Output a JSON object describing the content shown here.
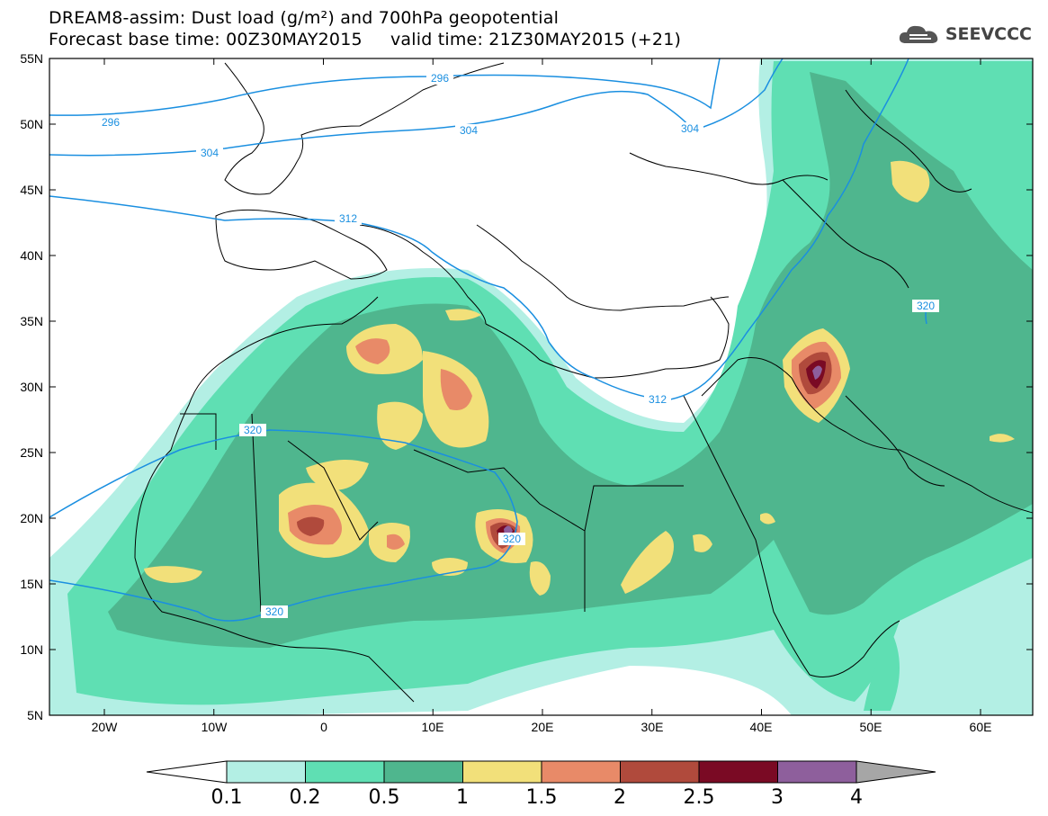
{
  "header": {
    "title_line1": "DREAM8-assim: Dust load (g/m²) and 700hPa geopotential",
    "title_line2": "Forecast base time: 00Z30MAY2015     valid time: 21Z30MAY2015 (+21)",
    "brand": "SEEVCCC",
    "brand_icon": "cloud-logo-icon"
  },
  "map": {
    "lat_labels": [
      "55N",
      "50N",
      "45N",
      "40N",
      "35N",
      "30N",
      "25N",
      "20N",
      "15N",
      "10N",
      "5N"
    ],
    "lon_labels": [
      "20W",
      "10W",
      "0",
      "10E",
      "20E",
      "30E",
      "40E",
      "50E",
      "60E"
    ],
    "contour_labels": [
      "296",
      "296",
      "304",
      "304",
      "304",
      "312",
      "312",
      "320",
      "320",
      "320",
      "320"
    ],
    "contour_color": "#1a8fe0"
  },
  "colorbar": {
    "labels": [
      "0.1",
      "0.2",
      "0.5",
      "1",
      "1.5",
      "2",
      "2.5",
      "3",
      "4"
    ],
    "colors": [
      "#b3efe4",
      "#5fdfb3",
      "#4fb68e",
      "#f2e07a",
      "#e88a68",
      "#b04a3c",
      "#7a0a24",
      "#8e5f9c"
    ],
    "below_color": "#ffffff",
    "above_color": "#a6a6a6"
  }
}
